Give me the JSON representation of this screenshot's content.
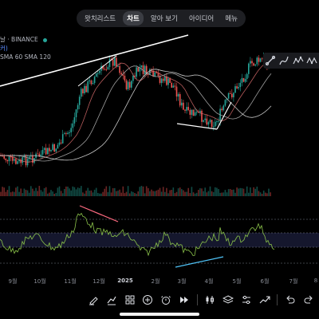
{
  "topnav": {
    "tabs": [
      {
        "label": "왓치리스트",
        "active": false
      },
      {
        "label": "차트",
        "active": true
      },
      {
        "label": "알아 보기",
        "active": false
      },
      {
        "label": "아이디어",
        "active": false
      },
      {
        "label": "메뉴",
        "active": false
      }
    ]
  },
  "legend": {
    "symbol_line": "날 · BINANCE",
    "sub_line": "커)",
    "ma_line": "SMA 60 SMA 120"
  },
  "xaxis": {
    "labels": [
      "9월",
      "10월",
      "11월",
      "12월",
      "2025",
      "2월",
      "3월",
      "4월",
      "5월",
      "6월",
      "7월",
      "8"
    ]
  },
  "colors": {
    "up": "#26a69a",
    "down": "#ef5350",
    "trendline": "#ffffff",
    "osc_line": "#8bc34a",
    "osc_band": "#2a2e5a",
    "ma_fast": "#9e9e9e",
    "ma_slow": "#c8c8c8"
  },
  "drawtools": {
    "icons": [
      "trend-line-icon",
      "brush-icon",
      "elliott-wave-icon",
      "xabcd-pattern-icon"
    ]
  },
  "toolbar": {
    "icons": [
      "draw-icon",
      "indicator-icon",
      "layout-icon",
      "add-icon",
      "alert-icon",
      "replay-icon",
      "candle-icon",
      "layers-icon",
      "settings-sliders-icon",
      "forecast-icon",
      "undo-icon",
      "redo-icon"
    ]
  }
}
